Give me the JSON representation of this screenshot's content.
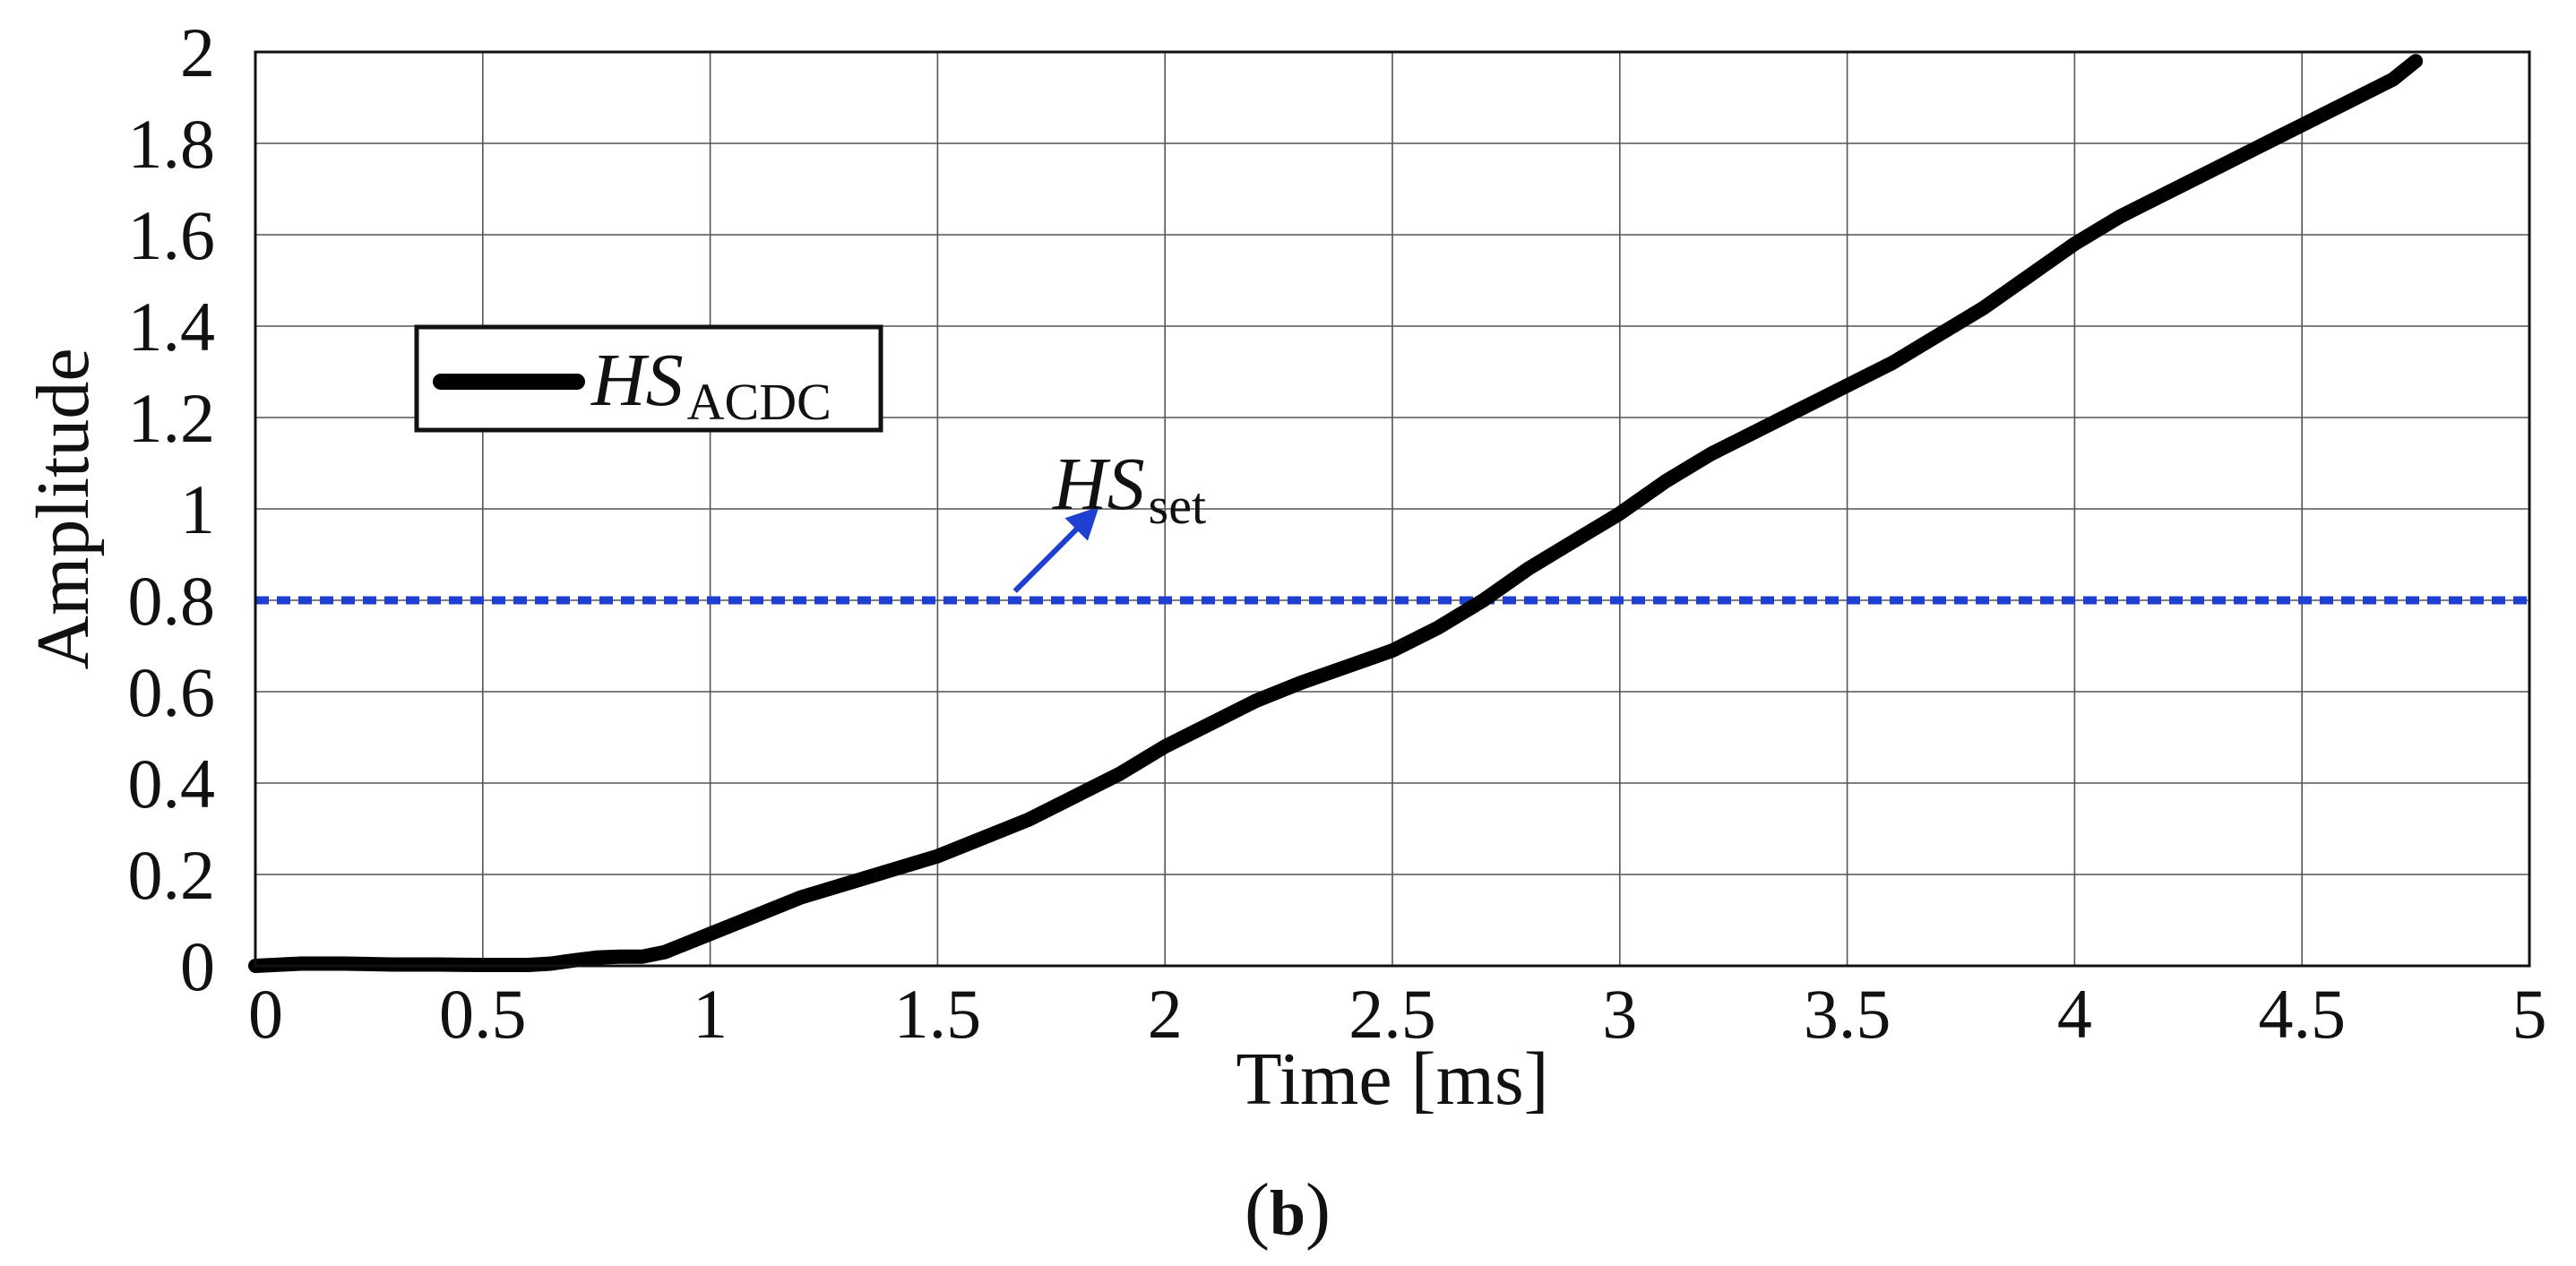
{
  "chart_data": {
    "type": "line",
    "xlabel": "Time [ms]",
    "ylabel": "Amplitude",
    "panel_label_open": "(",
    "panel_label_letter": "b",
    "panel_label_close": ")",
    "xlim": [
      0,
      5
    ],
    "ylim": [
      0,
      2
    ],
    "grid": true,
    "legend_placement": "top-left",
    "x_ticks": [
      0,
      0.5,
      1,
      1.5,
      2,
      2.5,
      3,
      3.5,
      4,
      4.5,
      5
    ],
    "x_tick_labels": [
      "0",
      "0.5",
      "1",
      "1.5",
      "2",
      "2.5",
      "3",
      "3.5",
      "4",
      "4.5",
      "5"
    ],
    "y_ticks": [
      0,
      0.2,
      0.4,
      0.6,
      0.8,
      1,
      1.2,
      1.4,
      1.6,
      1.8,
      2
    ],
    "y_tick_labels": [
      "0",
      "0.2",
      "0.4",
      "0.6",
      "0.8",
      "1",
      "1.2",
      "1.4",
      "1.6",
      "1.8",
      "2"
    ],
    "series": [
      {
        "name": "HS",
        "name_subscript": "ACDC",
        "color": "#000000",
        "style": "solid",
        "x": [
          0,
          0.1,
          0.2,
          0.3,
          0.4,
          0.5,
          0.6,
          0.65,
          0.7,
          0.75,
          0.8,
          0.85,
          0.9,
          1.0,
          1.1,
          1.2,
          1.3,
          1.4,
          1.5,
          1.6,
          1.7,
          1.8,
          1.9,
          2.0,
          2.1,
          2.2,
          2.3,
          2.4,
          2.5,
          2.6,
          2.7,
          2.8,
          2.9,
          3.0,
          3.1,
          3.2,
          3.3,
          3.4,
          3.5,
          3.6,
          3.7,
          3.8,
          3.9,
          4.0,
          4.1,
          4.2,
          4.3,
          4.4,
          4.5,
          4.6,
          4.7,
          4.75
        ],
        "y": [
          0,
          0.005,
          0.005,
          0.003,
          0.003,
          0.002,
          0.002,
          0.005,
          0.012,
          0.018,
          0.02,
          0.02,
          0.03,
          0.07,
          0.11,
          0.15,
          0.18,
          0.21,
          0.24,
          0.28,
          0.32,
          0.37,
          0.42,
          0.48,
          0.53,
          0.58,
          0.62,
          0.655,
          0.69,
          0.74,
          0.8,
          0.87,
          0.93,
          0.99,
          1.06,
          1.12,
          1.17,
          1.22,
          1.27,
          1.32,
          1.38,
          1.44,
          1.51,
          1.58,
          1.64,
          1.69,
          1.74,
          1.79,
          1.84,
          1.89,
          1.94,
          1.98
        ]
      },
      {
        "name": "HS",
        "name_subscript": "set",
        "color": "#1f3fd0",
        "style": "dotted",
        "x": [
          0,
          5
        ],
        "y": [
          0.8,
          0.8
        ]
      }
    ],
    "annotation_arrow": {
      "from": [
        1.67,
        0.82
      ],
      "to": [
        1.83,
        0.98
      ],
      "color": "#1f3fd0"
    }
  }
}
